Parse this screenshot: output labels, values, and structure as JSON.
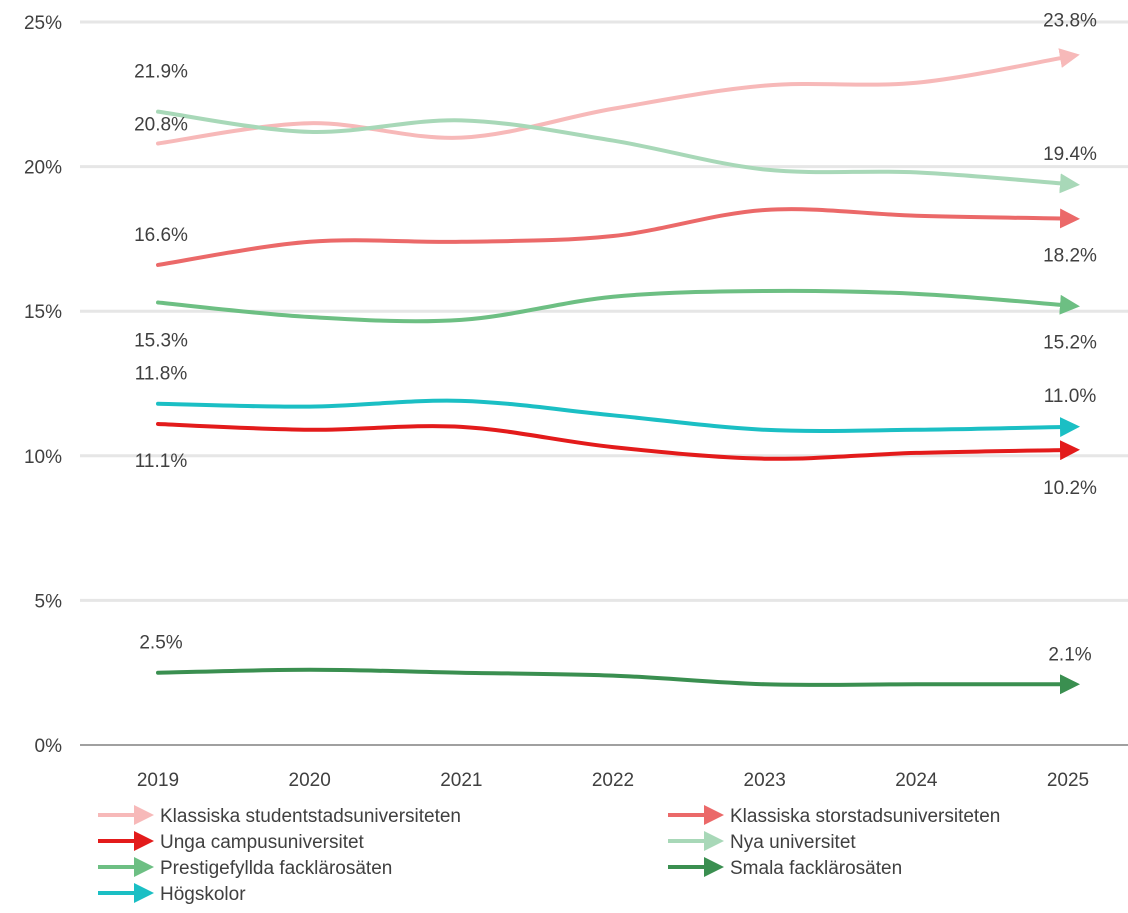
{
  "chart_data": {
    "type": "line",
    "x": [
      "2019",
      "2020",
      "2021",
      "2022",
      "2023",
      "2024",
      "2025"
    ],
    "y_ticks": [
      "0%",
      "5%",
      "10%",
      "15%",
      "20%",
      "25%"
    ],
    "ylim": [
      0,
      25
    ],
    "grid": "horizontal",
    "legend_position": "bottom",
    "series": [
      {
        "name": "Klassiska studentstadsuniversiteten",
        "color": "#F7B9B9",
        "values": [
          20.8,
          21.5,
          21.0,
          22.0,
          22.8,
          22.9,
          23.8
        ],
        "start_label": "20.8%",
        "end_label": "23.8%"
      },
      {
        "name": "Klassiska storstadsuniversiteten",
        "color": "#EB6969",
        "values": [
          16.6,
          17.4,
          17.4,
          17.6,
          18.5,
          18.3,
          18.2
        ],
        "start_label": "16.6%",
        "end_label": "18.2%"
      },
      {
        "name": "Unga campusuniversitet",
        "color": "#E31B1B",
        "values": [
          11.1,
          10.9,
          11.0,
          10.3,
          9.9,
          10.1,
          10.2
        ],
        "start_label": "11.1%",
        "end_label": "10.2%"
      },
      {
        "name": "Nya universitet",
        "color": "#A8D8B8",
        "values": [
          21.9,
          21.2,
          21.6,
          20.9,
          19.9,
          19.8,
          19.4
        ],
        "start_label": "21.9%",
        "end_label": "19.4%"
      },
      {
        "name": "Prestigefyllda facklärosäten",
        "color": "#6DBF83",
        "values": [
          15.3,
          14.8,
          14.7,
          15.5,
          15.7,
          15.6,
          15.2
        ],
        "start_label": "15.3%",
        "end_label": "15.2%"
      },
      {
        "name": "Smala facklärosäten",
        "color": "#3A8F50",
        "values": [
          2.5,
          2.6,
          2.5,
          2.4,
          2.1,
          2.1,
          2.1
        ],
        "start_label": "2.5%",
        "end_label": "2.1%"
      },
      {
        "name": "Högskolor",
        "color": "#1BBFC4",
        "values": [
          11.8,
          11.7,
          11.9,
          11.4,
          10.9,
          10.9,
          11.0
        ],
        "start_label": "11.8%",
        "end_label": "11.0%"
      }
    ]
  }
}
